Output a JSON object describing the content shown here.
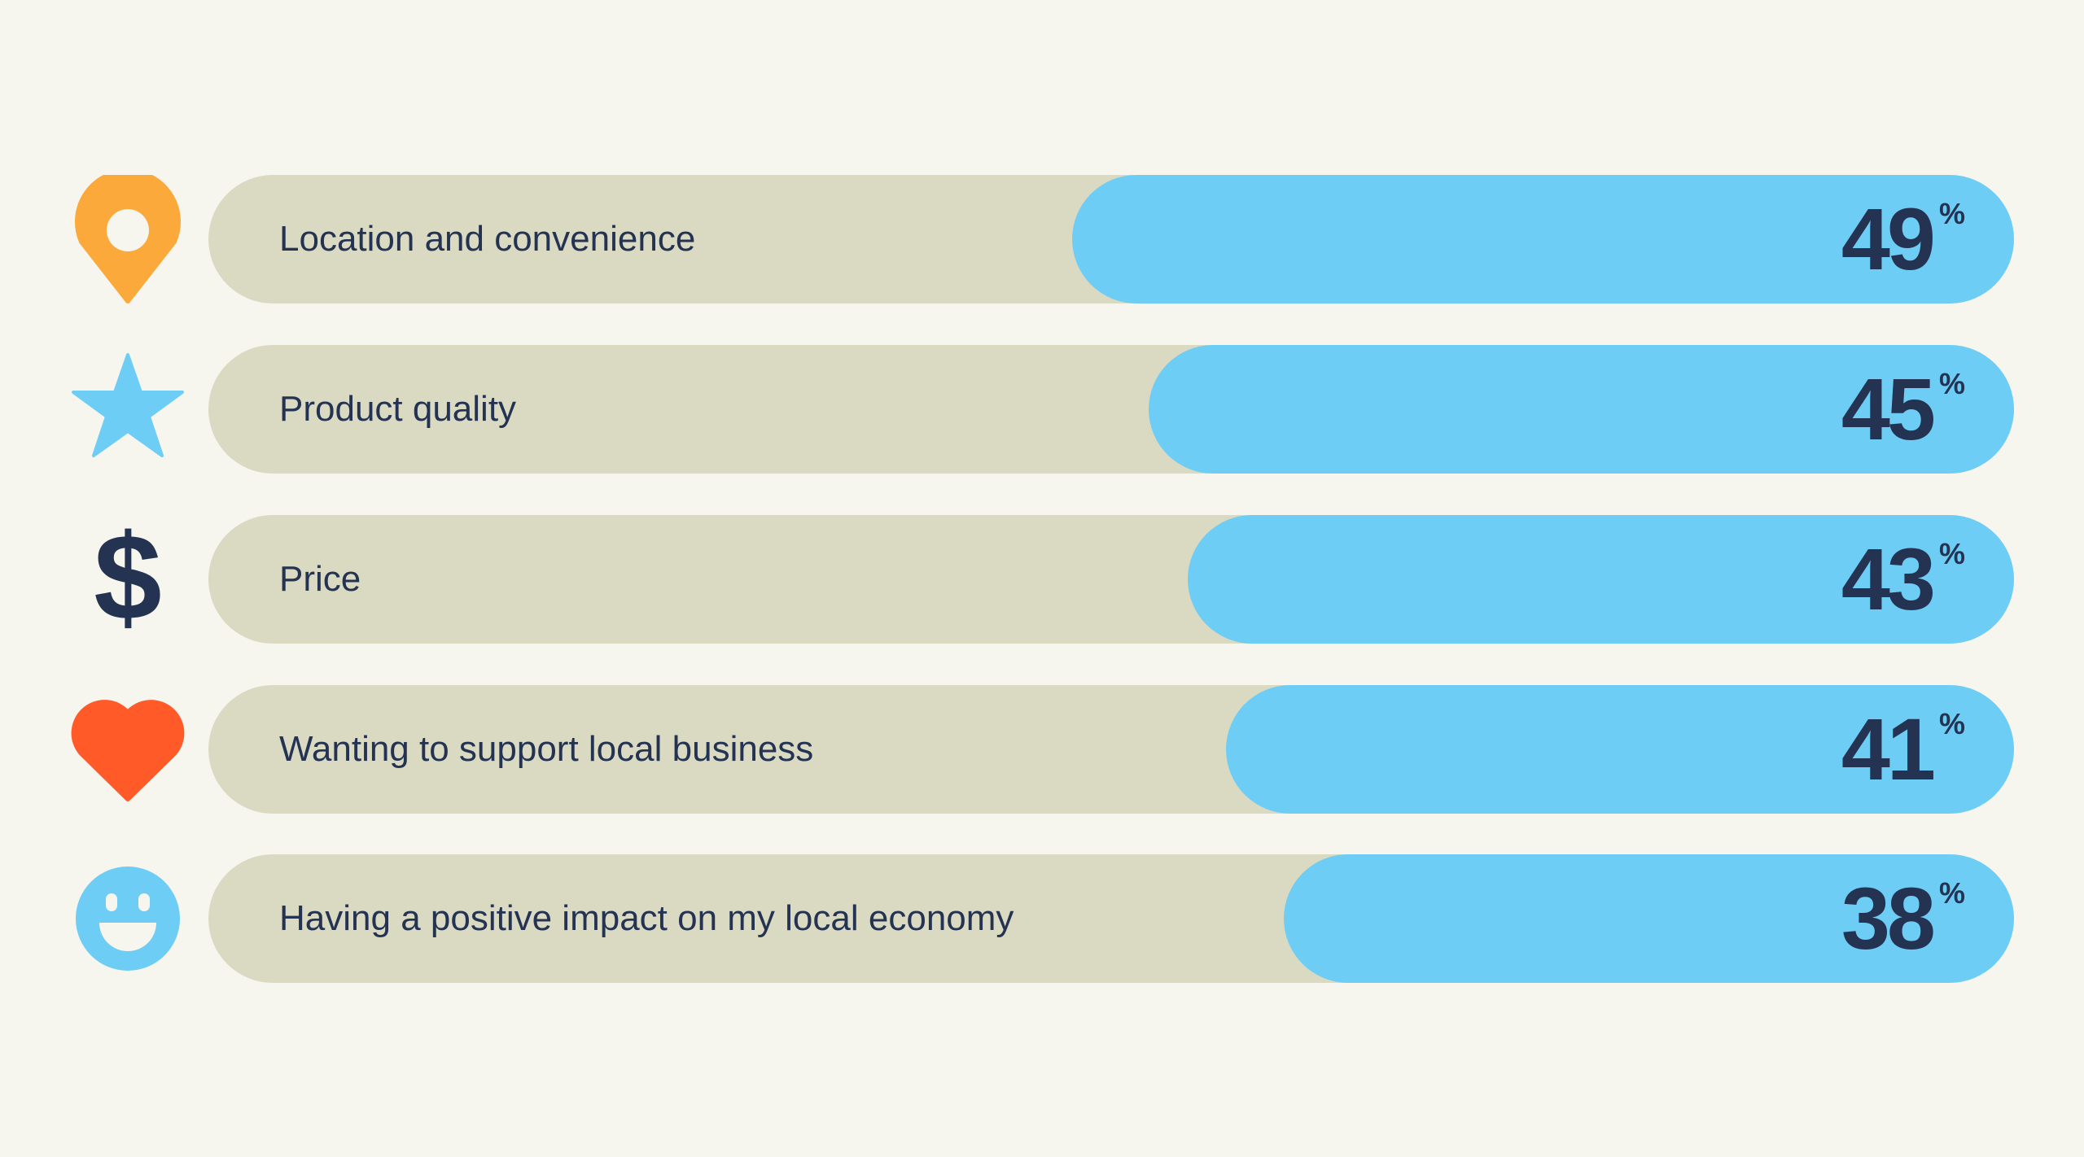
{
  "chart_data": {
    "type": "bar",
    "orientation": "horizontal",
    "categories": [
      "Location and convenience",
      "Product quality",
      "Price",
      "Wanting to support local business",
      "Having a positive impact on my local economy"
    ],
    "values": [
      49,
      45,
      43,
      41,
      38
    ],
    "unit": "%",
    "icons": [
      "map-pin-icon",
      "star-icon",
      "dollar-icon",
      "heart-icon",
      "smiley-icon"
    ],
    "colors": {
      "background": "#F6F6EF",
      "track": "#DADAC3",
      "bar": "#6ECDF5",
      "text": "#253353",
      "pin": "#FBA93A",
      "star": "#6ECDF5",
      "dollar": "#253353",
      "heart": "#FF5A28",
      "smiley": "#6ECDF5"
    },
    "grid": false,
    "legend": "none"
  }
}
